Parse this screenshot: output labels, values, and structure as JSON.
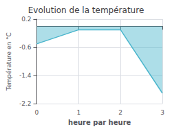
{
  "chart_data": {
    "type": "line",
    "title": "Evolution de la température",
    "xlabel": "heure par heure",
    "ylabel": "Température en °C",
    "x": [
      0,
      1,
      2,
      3
    ],
    "values": [
      -0.5,
      -0.1,
      -0.1,
      -1.9
    ],
    "color": "#4ab5cc",
    "xlim": [
      0,
      3
    ],
    "xticks": [
      0,
      1,
      2,
      3
    ],
    "ylim": [
      -2.2,
      0.2
    ],
    "yticks": [
      0.2,
      -0.6,
      -1.4,
      -2.2
    ],
    "grid": true
  }
}
